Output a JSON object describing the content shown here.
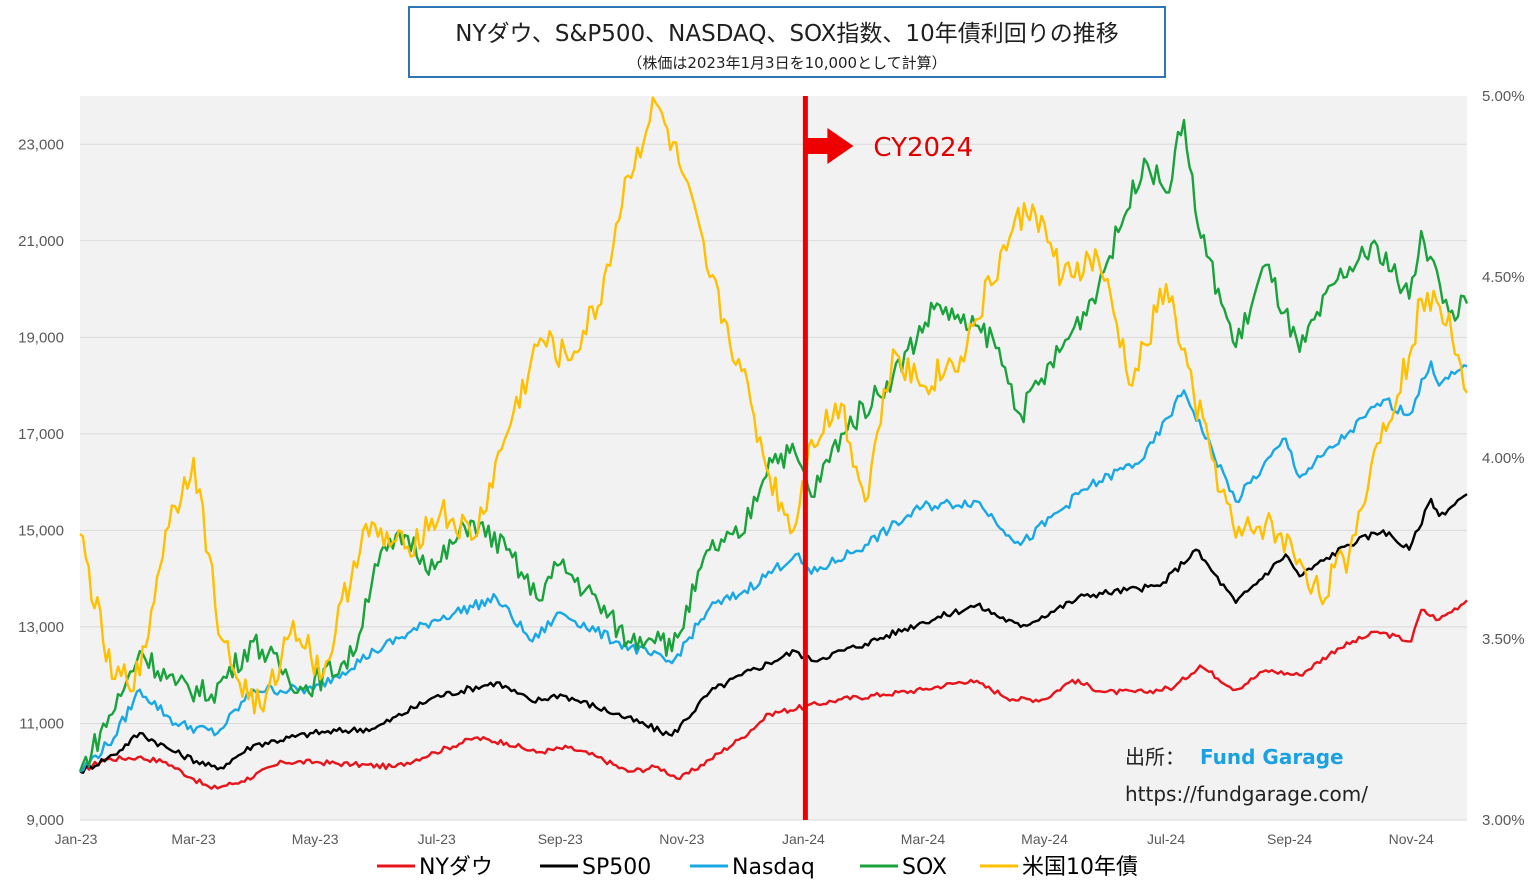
{
  "title": "NYダウ、S&P500、NASDAQ、SOX指数、10年債利回りの推移",
  "subtitle": "（株価は2023年1月3日を10,000として計算）",
  "annotation": "CY2024",
  "source_label": "出所：",
  "source_brand": "Fund Garage",
  "source_url": "https://fundgarage.com/",
  "colors": {
    "NYダウ": "#e8141b",
    "SP500": "#000000",
    "Nasdaq": "#18a8e4",
    "SOX": "#1aa23c",
    "米国10年債": "#ffc000",
    "divider": "#ee0000",
    "plot_bg": "#f2f2f2",
    "grid": "#d9d9d9"
  },
  "chart_data": {
    "type": "line",
    "title": "NYダウ、S&P500、NASDAQ、SOX指数、10年債利回りの推移",
    "subtitle": "（株価は2023年1月3日を10,000として計算）",
    "x_ticks": [
      "Jan-23",
      "Mar-23",
      "May-23",
      "Jul-23",
      "Sep-23",
      "Nov-23",
      "Jan-24",
      "Mar-24",
      "May-24",
      "Jul-24",
      "Sep-24",
      "Nov-24"
    ],
    "x_range": [
      "2023-01-03",
      "2024-11-29"
    ],
    "y_left": {
      "min": 9000,
      "max": 24000,
      "ticks": [
        "9,000",
        "11,000",
        "13,000",
        "15,000",
        "17,000",
        "19,000",
        "21,000",
        "23,000"
      ]
    },
    "y_right": {
      "min": 3.0,
      "max": 5.0,
      "ticks": [
        "3.00%",
        "3.50%",
        "4.00%",
        "4.50%",
        "5.00%"
      ]
    },
    "grid": true,
    "legend_position": "bottom",
    "divider_date": "2024-01-02",
    "series": [
      {
        "name": "NYダウ",
        "axis": "left",
        "points": [
          [
            "2023-01-03",
            10000
          ],
          [
            "2023-01-15",
            10250
          ],
          [
            "2023-02-01",
            10300
          ],
          [
            "2023-02-15",
            10200
          ],
          [
            "2023-03-01",
            9850
          ],
          [
            "2023-03-10",
            9650
          ],
          [
            "2023-03-25",
            9800
          ],
          [
            "2023-04-15",
            10200
          ],
          [
            "2023-05-01",
            10200
          ],
          [
            "2023-05-20",
            10150
          ],
          [
            "2023-06-10",
            10100
          ],
          [
            "2023-06-30",
            10400
          ],
          [
            "2023-07-20",
            10700
          ],
          [
            "2023-08-05",
            10600
          ],
          [
            "2023-08-20",
            10400
          ],
          [
            "2023-09-05",
            10500
          ],
          [
            "2023-09-20",
            10300
          ],
          [
            "2023-10-05",
            10000
          ],
          [
            "2023-10-20",
            10100
          ],
          [
            "2023-10-31",
            9850
          ],
          [
            "2023-11-15",
            10250
          ],
          [
            "2023-12-01",
            10700
          ],
          [
            "2023-12-15",
            11200
          ],
          [
            "2024-01-02",
            11350
          ],
          [
            "2024-01-20",
            11500
          ],
          [
            "2024-02-10",
            11600
          ],
          [
            "2024-03-01",
            11700
          ],
          [
            "2024-03-25",
            11900
          ],
          [
            "2024-04-15",
            11500
          ],
          [
            "2024-05-01",
            11500
          ],
          [
            "2024-05-15",
            11900
          ],
          [
            "2024-05-31",
            11650
          ],
          [
            "2024-06-20",
            11650
          ],
          [
            "2024-07-05",
            11750
          ],
          [
            "2024-07-18",
            12200
          ],
          [
            "2024-08-05",
            11700
          ],
          [
            "2024-08-20",
            12100
          ],
          [
            "2024-09-06",
            12000
          ],
          [
            "2024-09-25",
            12550
          ],
          [
            "2024-10-15",
            12900
          ],
          [
            "2024-11-01",
            12700
          ],
          [
            "2024-11-06",
            13350
          ],
          [
            "2024-11-15",
            13150
          ],
          [
            "2024-11-29",
            13550
          ]
        ]
      },
      {
        "name": "SP500",
        "axis": "left",
        "points": [
          [
            "2023-01-03",
            10000
          ],
          [
            "2023-01-20",
            10350
          ],
          [
            "2023-02-02",
            10800
          ],
          [
            "2023-02-20",
            10400
          ],
          [
            "2023-03-13",
            10050
          ],
          [
            "2023-03-31",
            10550
          ],
          [
            "2023-04-30",
            10800
          ],
          [
            "2023-05-31",
            10900
          ],
          [
            "2023-06-30",
            11550
          ],
          [
            "2023-07-31",
            11850
          ],
          [
            "2023-08-18",
            11450
          ],
          [
            "2023-09-01",
            11600
          ],
          [
            "2023-09-29",
            11200
          ],
          [
            "2023-10-27",
            10750
          ],
          [
            "2023-11-15",
            11650
          ],
          [
            "2023-12-01",
            12000
          ],
          [
            "2023-12-28",
            12500
          ],
          [
            "2024-01-05",
            12300
          ],
          [
            "2024-02-01",
            12650
          ],
          [
            "2024-03-01",
            13100
          ],
          [
            "2024-03-28",
            13450
          ],
          [
            "2024-04-19",
            13000
          ],
          [
            "2024-05-21",
            13650
          ],
          [
            "2024-06-28",
            13850
          ],
          [
            "2024-07-16",
            14600
          ],
          [
            "2024-08-05",
            13500
          ],
          [
            "2024-08-30",
            14500
          ],
          [
            "2024-09-06",
            14050
          ],
          [
            "2024-09-30",
            14700
          ],
          [
            "2024-10-18",
            15000
          ],
          [
            "2024-10-31",
            14600
          ],
          [
            "2024-11-11",
            15650
          ],
          [
            "2024-11-15",
            15300
          ],
          [
            "2024-11-29",
            15750
          ]
        ]
      },
      {
        "name": "Nasdaq",
        "axis": "left",
        "points": [
          [
            "2023-01-03",
            10000
          ],
          [
            "2023-01-20",
            10700
          ],
          [
            "2023-02-02",
            11700
          ],
          [
            "2023-02-20",
            11000
          ],
          [
            "2023-03-13",
            10800
          ],
          [
            "2023-03-31",
            11700
          ],
          [
            "2023-04-30",
            11700
          ],
          [
            "2023-05-31",
            12500
          ],
          [
            "2023-06-30",
            13150
          ],
          [
            "2023-07-31",
            13600
          ],
          [
            "2023-08-18",
            12700
          ],
          [
            "2023-09-01",
            13300
          ],
          [
            "2023-09-29",
            12700
          ],
          [
            "2023-10-27",
            12250
          ],
          [
            "2023-11-15",
            13400
          ],
          [
            "2023-12-01",
            13700
          ],
          [
            "2023-12-28",
            14500
          ],
          [
            "2024-01-05",
            14100
          ],
          [
            "2024-02-01",
            14700
          ],
          [
            "2024-03-01",
            15500
          ],
          [
            "2024-03-28",
            15600
          ],
          [
            "2024-04-19",
            14700
          ],
          [
            "2024-05-21",
            15850
          ],
          [
            "2024-06-20",
            16500
          ],
          [
            "2024-07-10",
            17900
          ],
          [
            "2024-08-05",
            15600
          ],
          [
            "2024-08-30",
            16900
          ],
          [
            "2024-09-06",
            16100
          ],
          [
            "2024-09-30",
            17000
          ],
          [
            "2024-10-18",
            17700
          ],
          [
            "2024-10-31",
            17400
          ],
          [
            "2024-11-11",
            18500
          ],
          [
            "2024-11-15",
            18000
          ],
          [
            "2024-11-29",
            18400
          ]
        ]
      },
      {
        "name": "SOX",
        "axis": "left",
        "points": [
          [
            "2023-01-03",
            10000
          ],
          [
            "2023-01-25",
            11700
          ],
          [
            "2023-02-02",
            12500
          ],
          [
            "2023-02-20",
            11800
          ],
          [
            "2023-03-10",
            11600
          ],
          [
            "2023-03-31",
            12700
          ],
          [
            "2023-04-25",
            11700
          ],
          [
            "2023-05-20",
            12400
          ],
          [
            "2023-05-31",
            14300
          ],
          [
            "2023-06-15",
            14900
          ],
          [
            "2023-06-30",
            14200
          ],
          [
            "2023-07-18",
            15200
          ],
          [
            "2023-08-05",
            14600
          ],
          [
            "2023-08-20",
            13600
          ],
          [
            "2023-09-01",
            14300
          ],
          [
            "2023-09-20",
            13500
          ],
          [
            "2023-10-05",
            12700
          ],
          [
            "2023-10-20",
            12900
          ],
          [
            "2023-10-27",
            12500
          ],
          [
            "2023-11-15",
            14600
          ],
          [
            "2023-12-01",
            14900
          ],
          [
            "2023-12-15",
            16500
          ],
          [
            "2023-12-28",
            16600
          ],
          [
            "2024-01-05",
            15700
          ],
          [
            "2024-01-20",
            17000
          ],
          [
            "2024-02-15",
            18200
          ],
          [
            "2024-03-08",
            19700
          ],
          [
            "2024-03-20",
            19300
          ],
          [
            "2024-04-05",
            19000
          ],
          [
            "2024-04-19",
            17400
          ],
          [
            "2024-05-10",
            18800
          ],
          [
            "2024-05-25",
            19800
          ],
          [
            "2024-06-10",
            21500
          ],
          [
            "2024-06-20",
            22700
          ],
          [
            "2024-07-01",
            22000
          ],
          [
            "2024-07-10",
            23500
          ],
          [
            "2024-07-17",
            21300
          ],
          [
            "2024-08-05",
            18800
          ],
          [
            "2024-08-20",
            20500
          ],
          [
            "2024-09-06",
            18700
          ],
          [
            "2024-09-25",
            20200
          ],
          [
            "2024-10-15",
            20900
          ],
          [
            "2024-10-31",
            19800
          ],
          [
            "2024-11-06",
            21200
          ],
          [
            "2024-11-20",
            19500
          ],
          [
            "2024-11-29",
            19700
          ]
        ]
      },
      {
        "name": "米国10年債",
        "axis": "right",
        "points": [
          [
            "2023-01-03",
            3.79
          ],
          [
            "2023-01-19",
            3.39
          ],
          [
            "2023-02-02",
            3.4
          ],
          [
            "2023-02-15",
            3.8
          ],
          [
            "2023-03-01",
            4.0
          ],
          [
            "2023-03-15",
            3.5
          ],
          [
            "2023-03-24",
            3.38
          ],
          [
            "2023-04-05",
            3.3
          ],
          [
            "2023-04-20",
            3.55
          ],
          [
            "2023-05-05",
            3.4
          ],
          [
            "2023-05-25",
            3.8
          ],
          [
            "2023-06-15",
            3.75
          ],
          [
            "2023-07-03",
            3.85
          ],
          [
            "2023-07-20",
            3.78
          ],
          [
            "2023-08-04",
            4.05
          ],
          [
            "2023-08-22",
            4.33
          ],
          [
            "2023-09-05",
            4.27
          ],
          [
            "2023-09-20",
            4.42
          ],
          [
            "2023-10-05",
            4.78
          ],
          [
            "2023-10-19",
            4.98
          ],
          [
            "2023-11-01",
            4.79
          ],
          [
            "2023-11-15",
            4.5
          ],
          [
            "2023-12-01",
            4.24
          ],
          [
            "2023-12-15",
            3.95
          ],
          [
            "2023-12-27",
            3.8
          ],
          [
            "2024-01-05",
            4.05
          ],
          [
            "2024-01-20",
            4.15
          ],
          [
            "2024-02-01",
            3.88
          ],
          [
            "2024-02-15",
            4.3
          ],
          [
            "2024-03-01",
            4.2
          ],
          [
            "2024-03-20",
            4.28
          ],
          [
            "2024-04-15",
            4.63
          ],
          [
            "2024-04-25",
            4.7
          ],
          [
            "2024-05-10",
            4.5
          ],
          [
            "2024-05-28",
            4.55
          ],
          [
            "2024-06-14",
            4.2
          ],
          [
            "2024-07-01",
            4.48
          ],
          [
            "2024-07-15",
            4.17
          ],
          [
            "2024-08-05",
            3.78
          ],
          [
            "2024-08-20",
            3.82
          ],
          [
            "2024-09-06",
            3.72
          ],
          [
            "2024-09-16",
            3.62
          ],
          [
            "2024-10-01",
            3.74
          ],
          [
            "2024-10-15",
            4.04
          ],
          [
            "2024-10-31",
            4.28
          ],
          [
            "2024-11-06",
            4.44
          ],
          [
            "2024-11-20",
            4.4
          ],
          [
            "2024-11-29",
            4.18
          ]
        ]
      }
    ]
  },
  "legend": [
    {
      "label": "NYダウ",
      "color": "#e8141b"
    },
    {
      "label": "SP500",
      "color": "#000000"
    },
    {
      "label": "Nasdaq",
      "color": "#18a8e4"
    },
    {
      "label": "SOX",
      "color": "#1aa23c"
    },
    {
      "label": "米国10年債",
      "color": "#ffc000"
    }
  ]
}
